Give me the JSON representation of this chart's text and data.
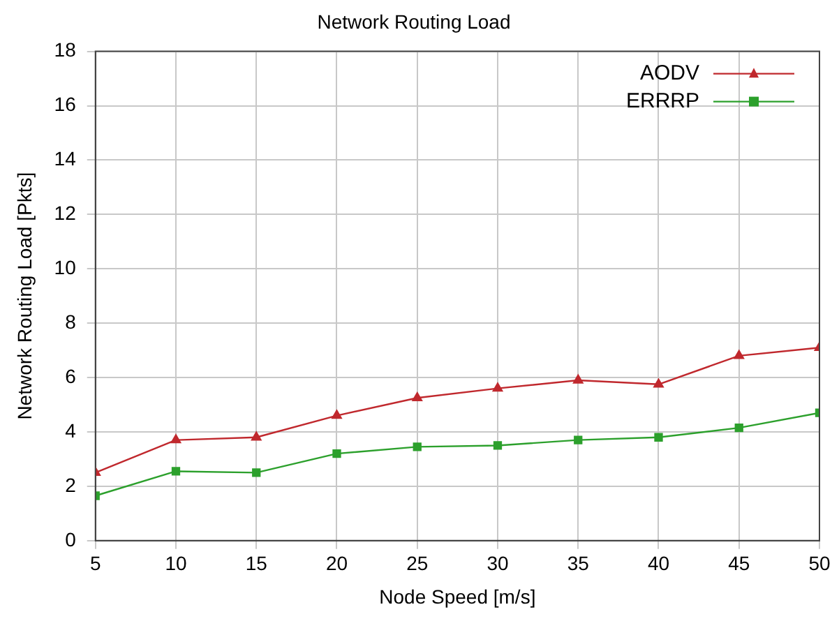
{
  "chart_data": {
    "type": "line",
    "title": "Network Routing Load",
    "xlabel": "Node Speed [m/s]",
    "ylabel": "Network Routing Load [Pkts]",
    "x": [
      5,
      10,
      15,
      20,
      25,
      30,
      35,
      40,
      45,
      50
    ],
    "series": [
      {
        "name": "AODV",
        "color": "#c0282d",
        "marker": "triangle",
        "values": [
          2.5,
          3.7,
          3.8,
          4.6,
          5.25,
          5.6,
          5.9,
          5.75,
          6.8,
          7.1
        ]
      },
      {
        "name": "ERRRP",
        "color": "#2ca02c",
        "marker": "square",
        "values": [
          1.65,
          2.55,
          2.5,
          3.2,
          3.45,
          3.5,
          3.7,
          3.8,
          4.15,
          4.7
        ]
      }
    ],
    "xlim": [
      5,
      50
    ],
    "xticks": [
      5,
      10,
      15,
      20,
      25,
      30,
      35,
      40,
      45,
      50
    ],
    "ylim": [
      0,
      18
    ],
    "yticks": [
      0,
      2,
      4,
      6,
      8,
      10,
      12,
      14,
      16,
      18
    ],
    "grid": true,
    "legend": "top right",
    "line_style": "solid"
  }
}
